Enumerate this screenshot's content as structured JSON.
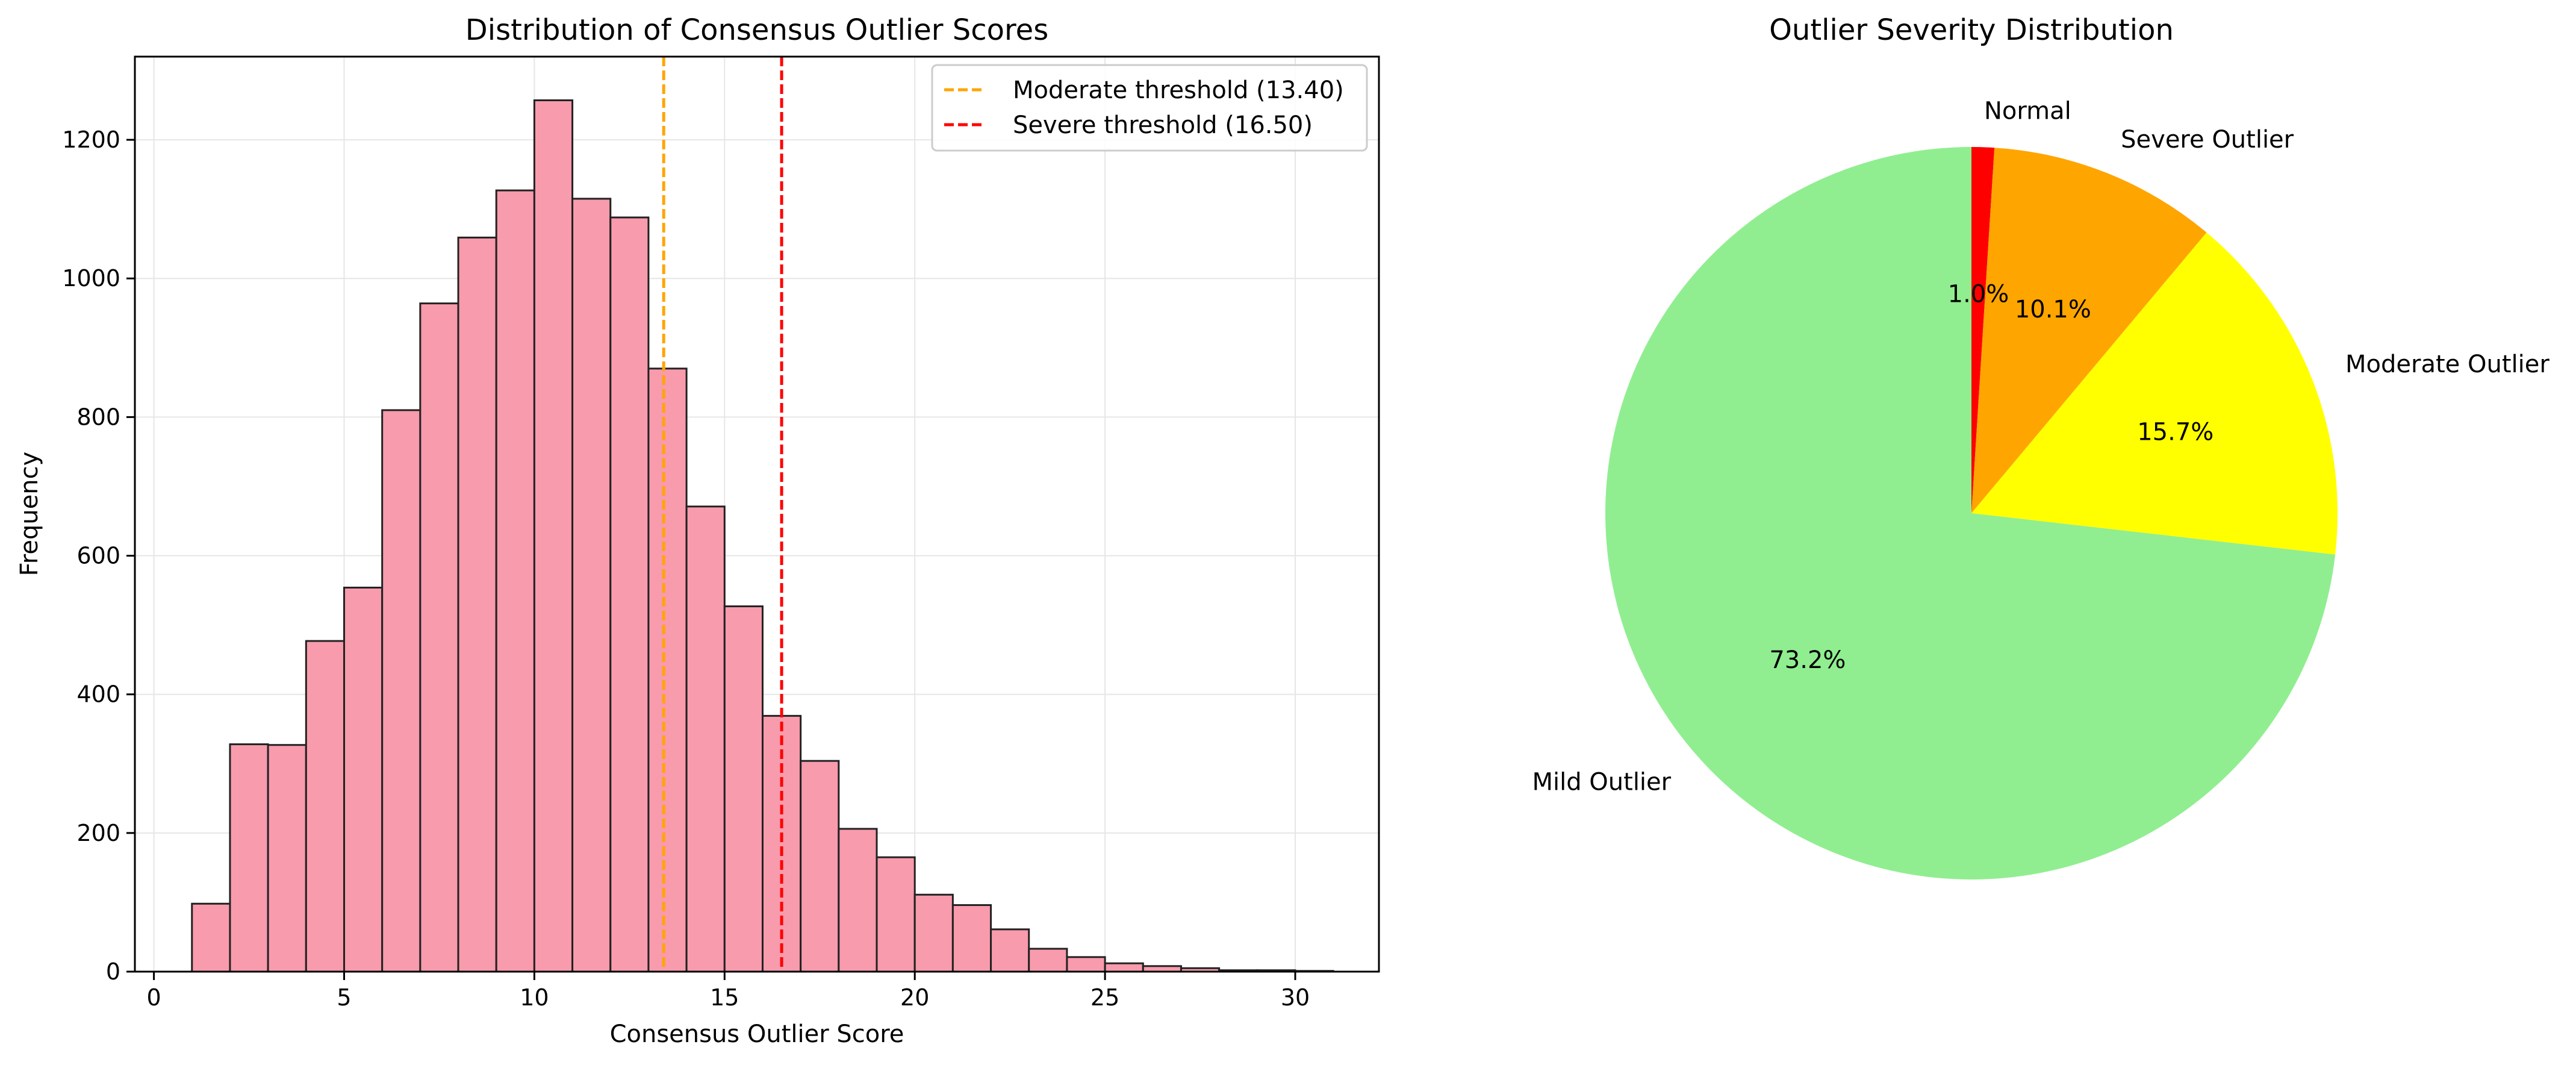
{
  "colors": {
    "bar_fill": "#f89bac",
    "bar_edge": "#222222",
    "grid": "#e6e6e6",
    "moderate_line": "#ffa500",
    "severe_line": "#ff0000"
  },
  "chart_data": [
    {
      "type": "bar",
      "title": "Distribution of Consensus Outlier Scores",
      "xlabel": "Consensus Outlier Score",
      "ylabel": "Frequency",
      "xlim": [
        -0.5,
        32.2
      ],
      "ylim": [
        0,
        1320
      ],
      "xticks": [
        0,
        5,
        10,
        15,
        20,
        25,
        30
      ],
      "yticks": [
        0,
        200,
        400,
        600,
        800,
        1000,
        1200
      ],
      "grid": true,
      "bin_start": 1.0,
      "bin_width": 1.0,
      "values": [
        98,
        328,
        327,
        477,
        554,
        810,
        964,
        1059,
        1127,
        1257,
        1115,
        1088,
        870,
        671,
        527,
        369,
        304,
        206,
        165,
        111,
        96,
        61,
        33,
        21,
        12,
        8,
        5,
        2,
        2,
        1
      ],
      "thresholds": [
        {
          "name": "Moderate threshold (13.40)",
          "value": 13.4,
          "color": "#ffa500"
        },
        {
          "name": "Severe threshold (16.50)",
          "value": 16.5,
          "color": "#ff0000"
        }
      ],
      "legend_position": "upper-right"
    },
    {
      "type": "pie",
      "title": "Outlier Severity Distribution",
      "start_angle": 90,
      "direction": "clockwise",
      "slices": [
        {
          "label": "Normal",
          "value": 1.0,
          "pct_label": "1.0%",
          "color": "#ff0000"
        },
        {
          "label": "Severe Outlier",
          "value": 10.1,
          "pct_label": "10.1%",
          "color": "#ffa500"
        },
        {
          "label": "Moderate Outlier",
          "value": 15.7,
          "pct_label": "15.7%",
          "color": "#ffff00"
        },
        {
          "label": "Mild Outlier",
          "value": 73.2,
          "pct_label": "73.2%",
          "color": "#90ee90"
        }
      ]
    }
  ]
}
